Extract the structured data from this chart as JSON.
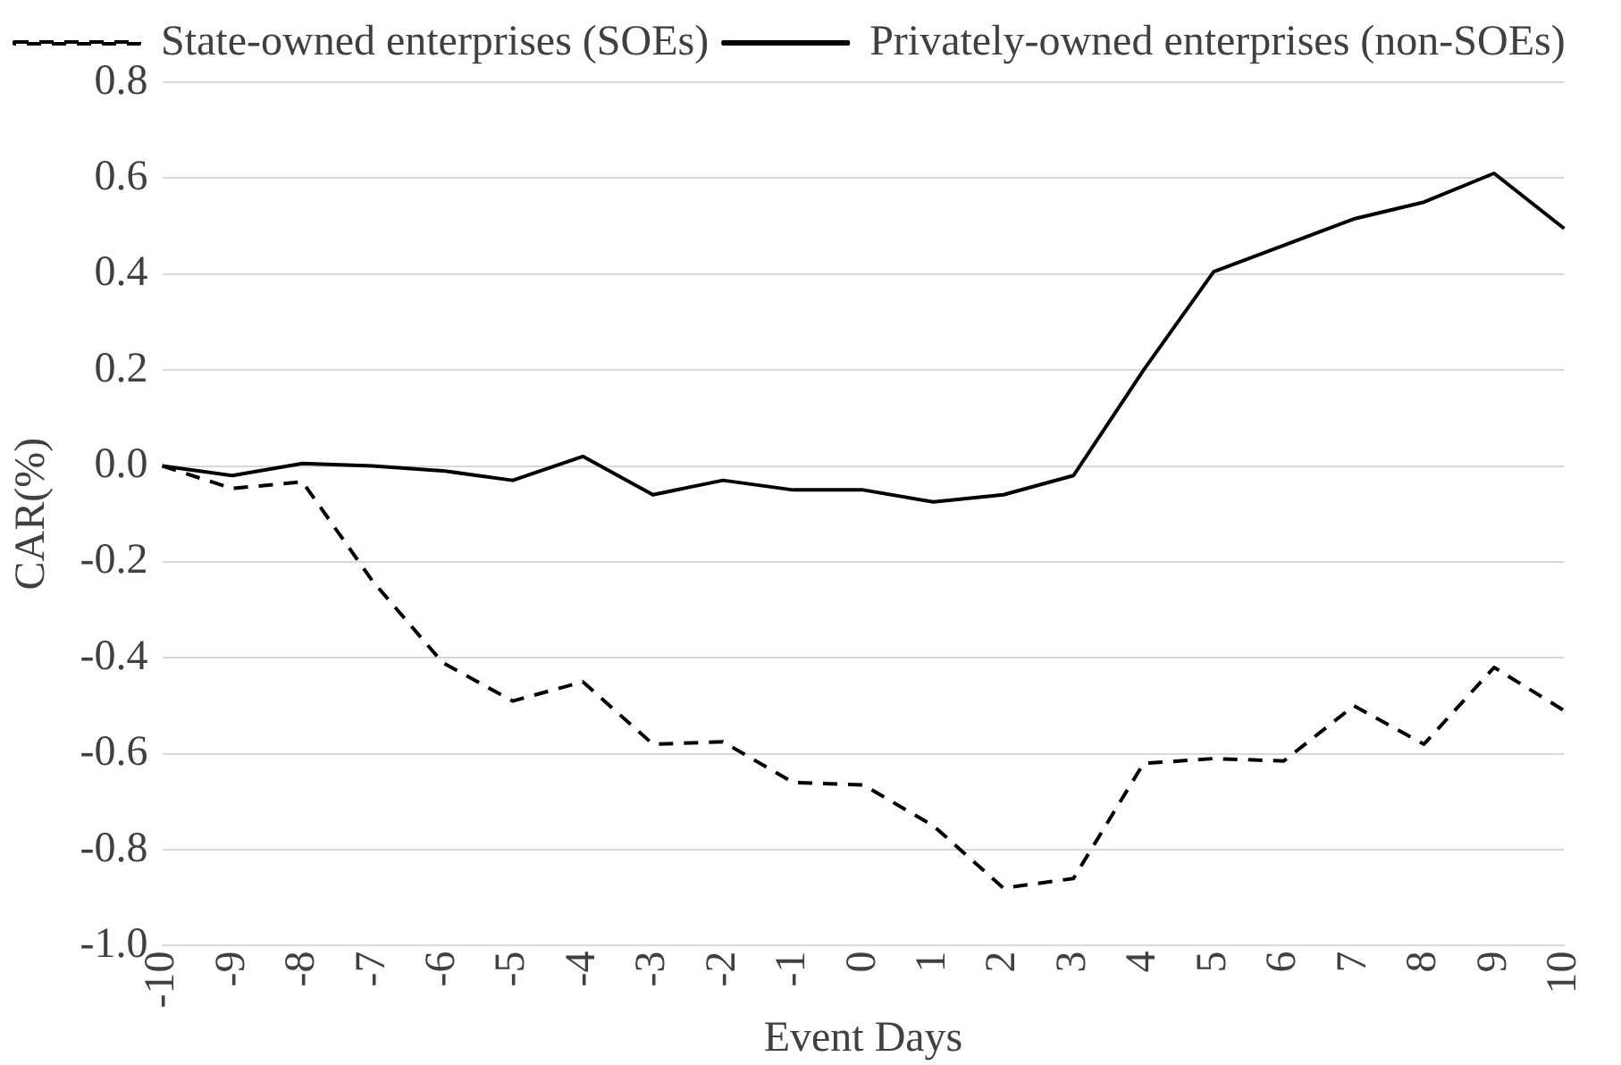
{
  "chart_data": {
    "type": "line",
    "xlabel": "Event Days",
    "ylabel": "CAR(%)",
    "categories": [
      "-10",
      "-9",
      "-8",
      "-7",
      "-6",
      "-5",
      "-4",
      "-3",
      "-2",
      "-1",
      "0",
      "1",
      "2",
      "3",
      "4",
      "5",
      "6",
      "7",
      "8",
      "9",
      "10"
    ],
    "series": [
      {
        "name": "State-owned enterprises (SOEs)",
        "color": "#000000",
        "line_style": "dashed",
        "values": [
          0,
          -0.047,
          -0.033,
          -0.24,
          -0.41,
          -0.49,
          -0.45,
          -0.58,
          -0.575,
          -0.66,
          -0.665,
          -0.75,
          -0.88,
          -0.86,
          -0.62,
          -0.61,
          -0.615,
          -0.5,
          -0.58,
          -0.42,
          -0.51
        ]
      },
      {
        "name": "Privately-owned enterprises (non-SOEs)",
        "color": "#000000",
        "line_style": "solid",
        "values": [
          0,
          -0.02,
          0.005,
          0,
          -0.01,
          -0.03,
          0.02,
          -0.06,
          -0.03,
          -0.05,
          -0.05,
          -0.075,
          -0.06,
          -0.02,
          0.2,
          0.405,
          0.46,
          0.515,
          0.55,
          0.61,
          0.495
        ]
      }
    ],
    "ylim": [
      -1.0,
      0.8
    ],
    "yticks": [
      {
        "value": -1.0,
        "label": "-1.0"
      },
      {
        "value": -0.8,
        "label": "-0.8"
      },
      {
        "value": -0.6,
        "label": "-0.6"
      },
      {
        "value": -0.4,
        "label": "-0.4"
      },
      {
        "value": -0.2,
        "label": "-0.2"
      },
      {
        "value": 0,
        "label": "0.0"
      },
      {
        "value": 0.2,
        "label": "0.2"
      },
      {
        "value": 0.4,
        "label": "0.4"
      },
      {
        "value": 0.6,
        "label": "0.6"
      },
      {
        "value": 0.8,
        "label": "0.8"
      }
    ],
    "grid": "y",
    "legend": "top left",
    "marker": "none"
  }
}
